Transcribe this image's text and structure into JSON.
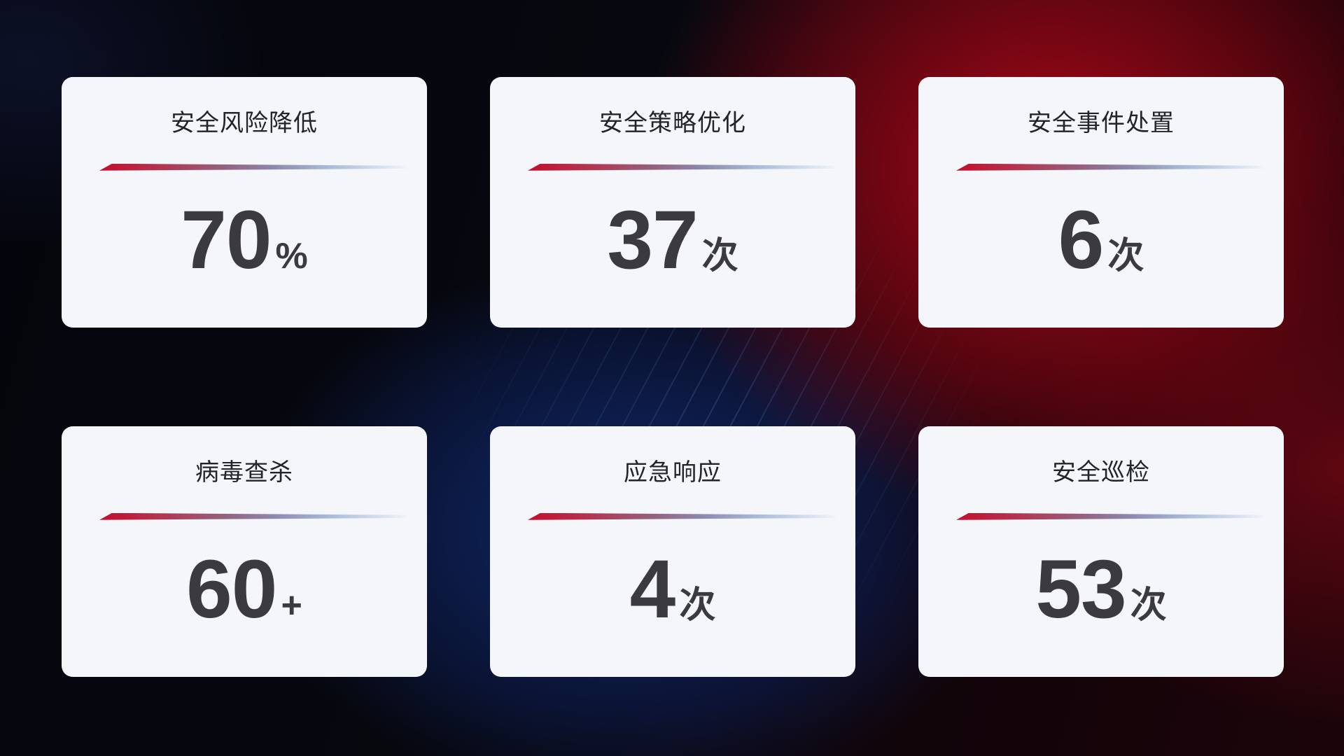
{
  "theme": {
    "accent_red": "#c40e2d",
    "accent_blue": "#a7bad8",
    "card_bg": "#f4f6f9",
    "title_color": "#23232a",
    "value_color": "#3a3a40",
    "bg_base": "#06070f"
  },
  "cards": [
    {
      "title": "安全风险降低",
      "value": "70",
      "unit": "%"
    },
    {
      "title": "安全策略优化",
      "value": "37",
      "unit": "次"
    },
    {
      "title": "安全事件处置",
      "value": "6",
      "unit": "次"
    },
    {
      "title": "病毒查杀",
      "value": "60",
      "unit": "+"
    },
    {
      "title": "应急响应",
      "value": "4",
      "unit": "次"
    },
    {
      "title": "安全巡检",
      "value": "53",
      "unit": "次"
    }
  ]
}
